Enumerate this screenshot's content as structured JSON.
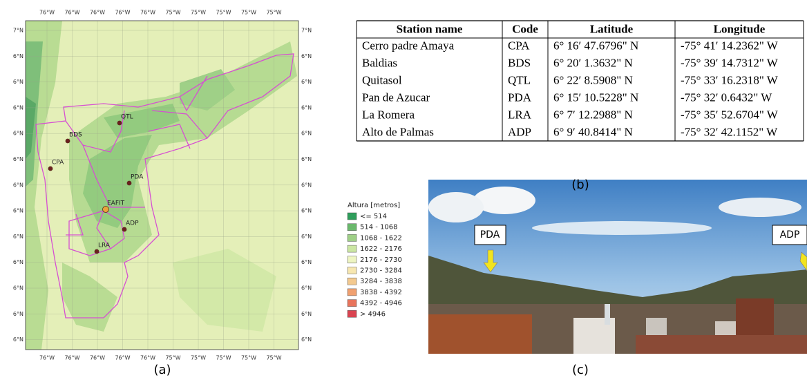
{
  "map": {
    "x_labels": [
      "76°W",
      "76°W",
      "76°W",
      "76°W",
      "76°W",
      "75°W",
      "75°W",
      "75°W",
      "75°W",
      "75°W"
    ],
    "y_labels": [
      "7°N",
      "6°N",
      "6°N",
      "6°N",
      "6°N",
      "6°N",
      "6°N",
      "6°N",
      "6°N",
      "6°N",
      "6°N",
      "6°N",
      "6°N"
    ],
    "stations": [
      "QTL",
      "BDS",
      "CPA",
      "PDA",
      "EAFIT",
      "ADP",
      "LRA"
    ]
  },
  "legend": {
    "title": "Altura [metros]",
    "items": [
      {
        "label": "<= 514",
        "color": "#2e9e5b"
      },
      {
        "label": "514 - 1068",
        "color": "#6ab86c"
      },
      {
        "label": "1068 - 1622",
        "color": "#9fd087"
      },
      {
        "label": "1622 - 2176",
        "color": "#cbe6a3"
      },
      {
        "label": "2176 - 2730",
        "color": "#eef5c2"
      },
      {
        "label": "2730 - 3284",
        "color": "#f7e7b0"
      },
      {
        "label": "3284 - 3838",
        "color": "#f3c98f"
      },
      {
        "label": "3838 - 4392",
        "color": "#f0a070"
      },
      {
        "label": "4392 - 4946",
        "color": "#e8745c"
      },
      {
        "label": "> 4946",
        "color": "#d94350"
      }
    ]
  },
  "table": {
    "header": [
      "Station name",
      "Code",
      "Latitude",
      "Longitude"
    ],
    "rows": [
      [
        "Cerro padre Amaya",
        "CPA",
        "6° 16′ 47.6796\" N",
        "-75° 41′ 14.2362\" W"
      ],
      [
        "Baldias",
        "BDS",
        "6° 20′ 1.3632\" N",
        "-75° 39′ 14.7312\" W"
      ],
      [
        "Quitasol",
        "QTL",
        "6° 22′ 8.5908\" N",
        "-75° 33′ 16.2318\" W"
      ],
      [
        "Pan de Azucar",
        "PDA",
        "6° 15′ 10.5228\" N",
        "-75° 32′ 0.6432\" W"
      ],
      [
        "La Romera",
        "LRA",
        "6° 7′ 12.2988\" N",
        "-75° 35′ 52.6704\" W"
      ],
      [
        "Alto de Palmas",
        "ADP",
        "6° 9′ 40.8414\" N",
        "-75° 32′ 42.1152\" W"
      ]
    ]
  },
  "photo": {
    "labels": [
      "PDA",
      "ADP"
    ]
  },
  "captions": [
    "(a)",
    "(b)",
    "(c)"
  ]
}
